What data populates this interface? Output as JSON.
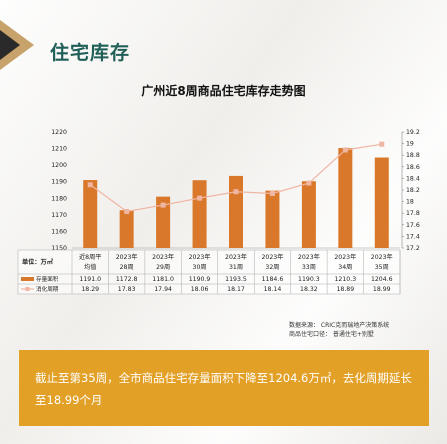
{
  "header": {
    "section_title": "住宅库存",
    "chart_title": "广州近8周商品住宅库存走势图"
  },
  "chart_data": {
    "type": "bar",
    "title": "广州近8周商品住宅库存走势图",
    "unit_label": "单位：万㎡",
    "categories": [
      [
        "近8周平",
        "均值"
      ],
      [
        "2023年",
        "28周"
      ],
      [
        "2023年",
        "29周"
      ],
      [
        "2023年",
        "30周"
      ],
      [
        "2023年",
        "31周"
      ],
      [
        "2023年",
        "32周"
      ],
      [
        "2023年",
        "33周"
      ],
      [
        "2023年",
        "34周"
      ],
      [
        "2023年",
        "35周"
      ]
    ],
    "series": [
      {
        "name": "存量面积",
        "type": "bar",
        "axis": "left",
        "color": "#d9782a",
        "values": [
          1191.0,
          1172.8,
          1181.0,
          1190.9,
          1193.5,
          1184.6,
          1190.3,
          1210.3,
          1204.6
        ],
        "display": [
          "1191.0",
          "1172.8",
          "1181.0",
          "1190.9",
          "1193.5",
          "1184.6",
          "1190.3",
          "1210.3",
          "1204.6"
        ]
      },
      {
        "name": "消化周期",
        "type": "line",
        "axis": "right",
        "color": "#f0b6a4",
        "values": [
          18.29,
          17.83,
          17.94,
          18.06,
          18.17,
          18.14,
          18.32,
          18.89,
          18.99
        ],
        "display": [
          "18.29",
          "17.83",
          "17.94",
          "18.06",
          "18.17",
          "18.14",
          "18.32",
          "18.89",
          "18.99"
        ]
      }
    ],
    "yleft": {
      "min": 1150,
      "max": 1220,
      "ticks": [
        "1220",
        "1210",
        "1200",
        "1190",
        "1180",
        "1170",
        "1160",
        "1150"
      ]
    },
    "yright": {
      "min": 17.2,
      "max": 19.2,
      "ticks": [
        "19.2",
        "19",
        "18.8",
        "18.6",
        "18.4",
        "18.2",
        "18",
        "17.8",
        "17.6",
        "17.4",
        "17.2"
      ]
    }
  },
  "source": {
    "line1": "数据来源：   CRIC克而瑞地产决策系统",
    "line2": "商品住宅口径：   普通住宅+别墅"
  },
  "summary": "截止至第35周，全市商品住宅存量面积下降至1204.6万㎡，去化周期延长至18.99个月"
}
